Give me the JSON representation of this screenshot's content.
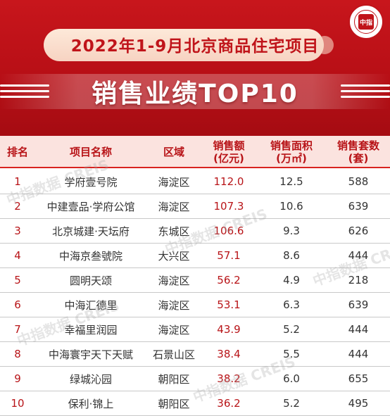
{
  "header": {
    "title_line1": "2022年1-9月北京商品住宅项目",
    "title_line2": "销售业绩TOP10",
    "logo_text": "中指"
  },
  "table": {
    "columns": [
      "排名",
      "项目名称",
      "区域",
      "销售额\n(亿元)",
      "销售面积\n(万㎡)",
      "销售套数\n(套)"
    ],
    "rows": [
      {
        "rank": "1",
        "name": "学府壹号院",
        "area": "海淀区",
        "amount": "112.0",
        "sqm": "12.5",
        "units": "588"
      },
      {
        "rank": "2",
        "name": "中建壹品·学府公馆",
        "area": "海淀区",
        "amount": "107.3",
        "sqm": "10.6",
        "units": "639"
      },
      {
        "rank": "3",
        "name": "北京城建·天坛府",
        "area": "东城区",
        "amount": "106.6",
        "sqm": "9.3",
        "units": "626"
      },
      {
        "rank": "4",
        "name": "中海京叁號院",
        "area": "大兴区",
        "amount": "57.1",
        "sqm": "8.6",
        "units": "444"
      },
      {
        "rank": "5",
        "name": "圆明天颂",
        "area": "海淀区",
        "amount": "56.2",
        "sqm": "4.9",
        "units": "218"
      },
      {
        "rank": "6",
        "name": "中海汇德里",
        "area": "海淀区",
        "amount": "53.1",
        "sqm": "6.3",
        "units": "639"
      },
      {
        "rank": "7",
        "name": "幸福里润园",
        "area": "海淀区",
        "amount": "43.9",
        "sqm": "5.2",
        "units": "444"
      },
      {
        "rank": "8",
        "name": "中海寰宇天下天赋",
        "area": "石景山区",
        "amount": "38.4",
        "sqm": "5.5",
        "units": "444"
      },
      {
        "rank": "9",
        "name": "绿城沁园",
        "area": "朝阳区",
        "amount": "38.2",
        "sqm": "6.0",
        "units": "655"
      },
      {
        "rank": "10",
        "name": "保利·锦上",
        "area": "朝阳区",
        "amount": "36.2",
        "sqm": "5.2",
        "units": "495"
      }
    ]
  },
  "watermark": "中指数据 CREIS",
  "colors": {
    "brand_red": "#c0141a",
    "header_bg": "#fbe3df",
    "header_text": "#b81418"
  }
}
